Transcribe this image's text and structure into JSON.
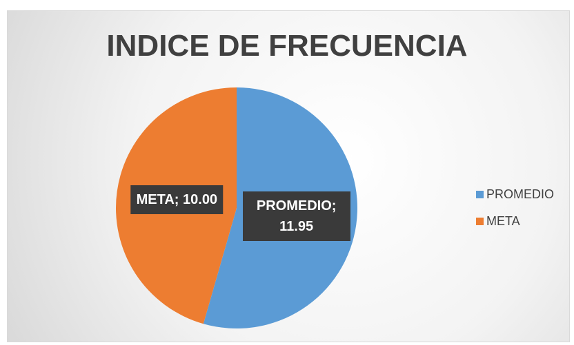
{
  "chart_data": {
    "type": "pie",
    "title": "INDICE DE FRECUENCIA",
    "categories": [
      "PROMEDIO",
      "META"
    ],
    "values": [
      11.95,
      10
    ],
    "value_labels": [
      "PROMEDIO; 11.95",
      "META; 10.00"
    ],
    "colors": [
      "#5b9bd5",
      "#ed7d31"
    ],
    "legend": "right"
  }
}
